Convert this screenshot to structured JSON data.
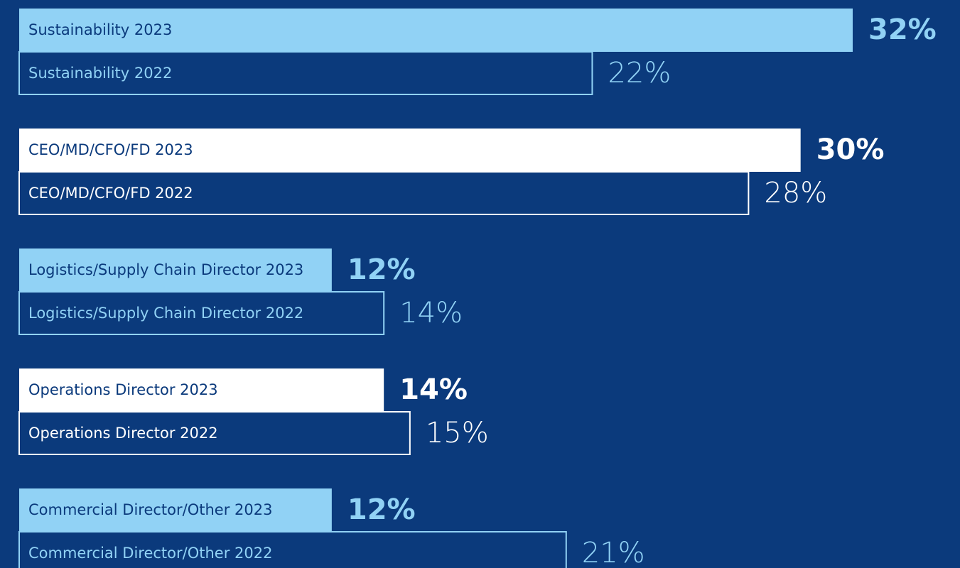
{
  "chart_data": {
    "type": "bar",
    "groups": [
      {
        "color": "#91d2f5",
        "bars": [
          {
            "label": "Sustainability 2023",
            "value": 32,
            "value_label": "32%"
          },
          {
            "label": "Sustainability 2022",
            "value": 22,
            "value_label": "22%"
          }
        ]
      },
      {
        "color": "#ffffff",
        "bars": [
          {
            "label": "CEO/MD/CFO/FD 2023",
            "value": 30,
            "value_label": "30%"
          },
          {
            "label": "CEO/MD/CFO/FD 2022",
            "value": 28,
            "value_label": "28%"
          }
        ]
      },
      {
        "color": "#91d2f5",
        "bars": [
          {
            "label": "Logistics/Supply Chain Director 2023",
            "value": 12,
            "value_label": "12%"
          },
          {
            "label": "Logistics/Supply Chain Director 2022",
            "value": 14,
            "value_label": "14%"
          }
        ]
      },
      {
        "color": "#ffffff",
        "bars": [
          {
            "label": "Operations Director 2023",
            "value": 14,
            "value_label": "14%"
          },
          {
            "label": "Operations Director 2022",
            "value": 15,
            "value_label": "15%"
          }
        ]
      },
      {
        "color": "#91d2f5",
        "bars": [
          {
            "label": "Commercial Director/Other 2023",
            "value": 12,
            "value_label": "12%"
          },
          {
            "label": "Commercial Director/Other 2022",
            "value": 21,
            "value_label": "21%"
          }
        ]
      }
    ]
  }
}
